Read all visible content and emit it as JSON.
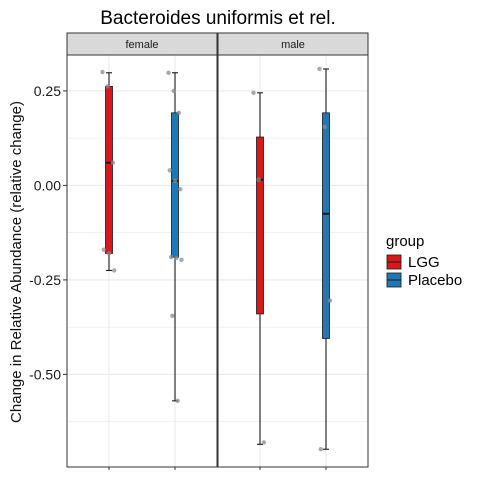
{
  "chart_data": {
    "type": "boxplot",
    "title": "Bacteroides uniformis et rel.",
    "xlabel": "",
    "ylabel": "Change in Relative Abundance (relative change)",
    "ylim": [
      -0.745,
      0.345
    ],
    "yticks": [
      0.25,
      0.0,
      -0.25,
      -0.5
    ],
    "ytick_labels": [
      "0.25",
      "0.00",
      "-0.25",
      "-0.50"
    ],
    "grid": true,
    "legend": {
      "title": "group",
      "position": "right",
      "entries": [
        {
          "label": "LGG",
          "color": "#d7191c"
        },
        {
          "label": "Placebo",
          "color": "#1f78b4"
        }
      ]
    },
    "facets": [
      {
        "label": "female",
        "boxes": [
          {
            "group": "LGG",
            "whisker_low": -0.225,
            "q1": -0.18,
            "median": 0.06,
            "q3": 0.262,
            "whisker_high": 0.298,
            "points": [
              0.3,
              0.262,
              0.06,
              -0.17,
              -0.18,
              -0.225
            ]
          },
          {
            "group": "Placebo",
            "whisker_low": -0.57,
            "q1": -0.19,
            "median": 0.012,
            "q3": 0.192,
            "whisker_high": 0.298,
            "points": [
              0.298,
              0.25,
              0.192,
              0.04,
              0.012,
              -0.01,
              -0.19,
              -0.192,
              -0.197,
              -0.345,
              -0.57
            ]
          }
        ]
      },
      {
        "label": "male",
        "boxes": [
          {
            "group": "LGG",
            "whisker_low": -0.685,
            "q1": -0.34,
            "median": 0.015,
            "q3": 0.128,
            "whisker_high": 0.245,
            "points": [
              0.245,
              0.015,
              -0.68
            ]
          },
          {
            "group": "Placebo",
            "whisker_low": -0.698,
            "q1": -0.405,
            "median": -0.075,
            "q3": 0.192,
            "whisker_high": 0.308,
            "points": [
              0.308,
              0.155,
              -0.305,
              -0.698
            ]
          }
        ]
      }
    ]
  },
  "colors": {
    "LGG": "#d7191c",
    "Placebo": "#1f78b4",
    "strip_fill": "#d9d9d9",
    "grid": "#ebebeb",
    "point": "#8c8c8c"
  }
}
